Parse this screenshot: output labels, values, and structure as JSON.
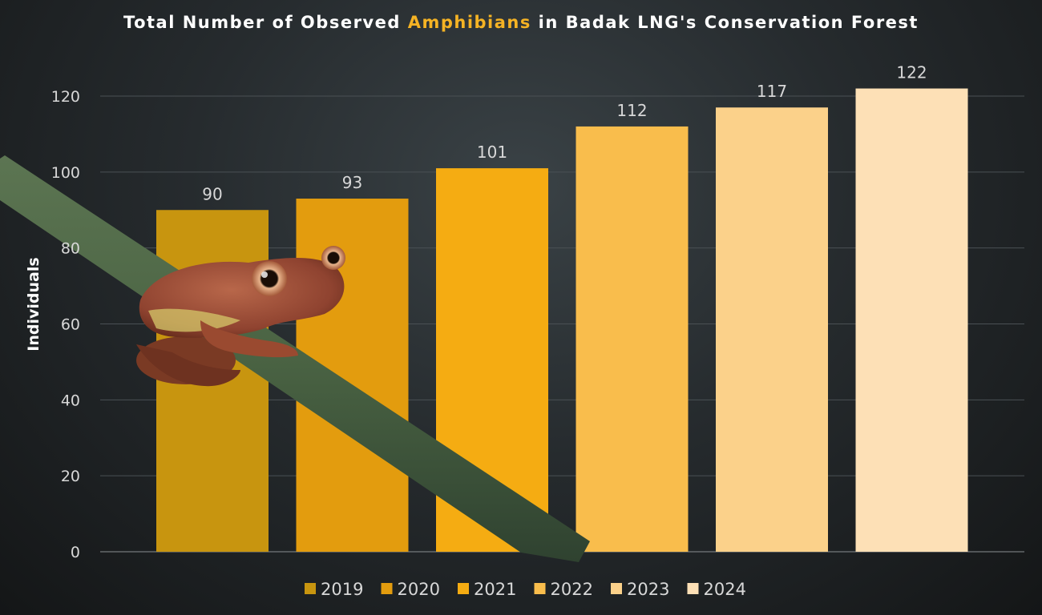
{
  "title": {
    "prefix": "Total Number of Observed ",
    "highlight": "Amphibians",
    "suffix": " in Badak LNG's Conservation Forest",
    "highlight_color": "#f5b324"
  },
  "chart_data": {
    "type": "bar",
    "title": "Total Number of Observed Amphibians in Badak LNG's Conservation Forest",
    "categories": [
      "2019",
      "2020",
      "2021",
      "2022",
      "2023",
      "2024"
    ],
    "values": [
      90,
      93,
      101,
      112,
      117,
      122
    ],
    "ylabel": "Individuals",
    "xlabel": "",
    "ylim": [
      0,
      120
    ],
    "yticks": [
      0,
      20,
      40,
      60,
      80,
      100,
      120
    ],
    "grid": true,
    "legend": "bottom",
    "colors": [
      "#c8950f",
      "#e39c0e",
      "#f5ac12",
      "#f9bd4c",
      "#fbd18a",
      "#fde0b6"
    ]
  },
  "decoration": {
    "photo_subject": "frog-on-stem"
  }
}
